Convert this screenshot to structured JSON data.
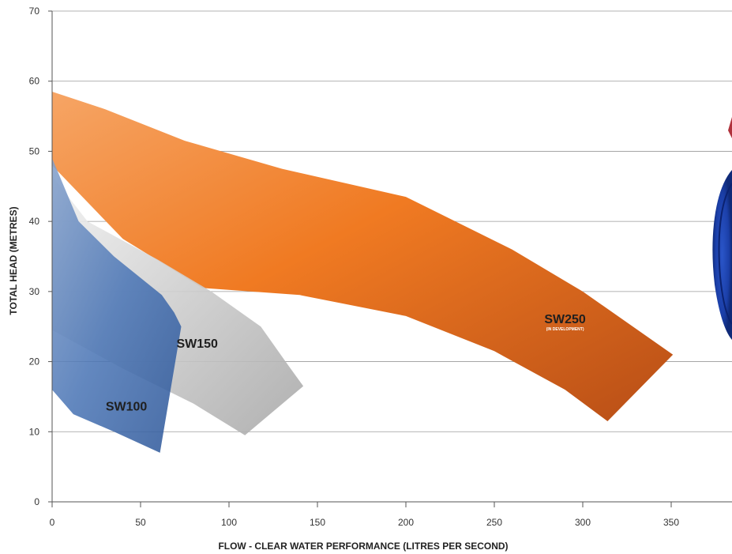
{
  "chart_data": {
    "type": "area",
    "title": "",
    "xlabel": "FLOW - CLEAR WATER PERFORMANCE (LITRES PER SECOND)",
    "ylabel": "TOTAL HEAD  (METRES)",
    "xlim": [
      0,
      385
    ],
    "ylim": [
      0,
      70
    ],
    "x_ticks": [
      0,
      50,
      100,
      150,
      200,
      250,
      300,
      350
    ],
    "y_ticks": [
      0,
      10,
      20,
      30,
      40,
      50,
      60,
      70
    ],
    "grid": "horizontal",
    "series": [
      {
        "name": "SW250",
        "note": "(IN DEVELOPMENT)",
        "color": "#f07a22",
        "upper": [
          [
            0,
            58.5
          ],
          [
            30,
            56
          ],
          [
            75,
            51.5
          ],
          [
            130,
            47.5
          ],
          [
            200,
            43.5
          ],
          [
            260,
            36
          ],
          [
            300,
            30
          ],
          [
            351,
            21
          ]
        ],
        "lower": [
          [
            0,
            48
          ],
          [
            40,
            37.5
          ],
          [
            85,
            30.5
          ],
          [
            140,
            29.5
          ],
          [
            200,
            26.5
          ],
          [
            250,
            21.5
          ],
          [
            290,
            16
          ],
          [
            314,
            11.5
          ]
        ]
      },
      {
        "name": "SW150",
        "color": "#c8c8c8",
        "upper": [
          [
            0,
            46.5
          ],
          [
            20,
            40
          ],
          [
            60,
            34.5
          ],
          [
            90,
            30
          ],
          [
            118,
            25
          ],
          [
            132,
            20
          ],
          [
            142,
            16.5
          ]
        ],
        "lower": [
          [
            0,
            24.5
          ],
          [
            40,
            19
          ],
          [
            80,
            14
          ],
          [
            109,
            9.5
          ]
        ]
      },
      {
        "name": "SW100",
        "color": "#3f6db1",
        "upper": [
          [
            0,
            49
          ],
          [
            15,
            40
          ],
          [
            35,
            35
          ],
          [
            62,
            29.5
          ],
          [
            69,
            27
          ],
          [
            73,
            25
          ]
        ],
        "lower": [
          [
            0,
            16
          ],
          [
            12,
            12.5
          ],
          [
            35,
            10
          ],
          [
            61,
            7
          ]
        ]
      }
    ]
  }
}
